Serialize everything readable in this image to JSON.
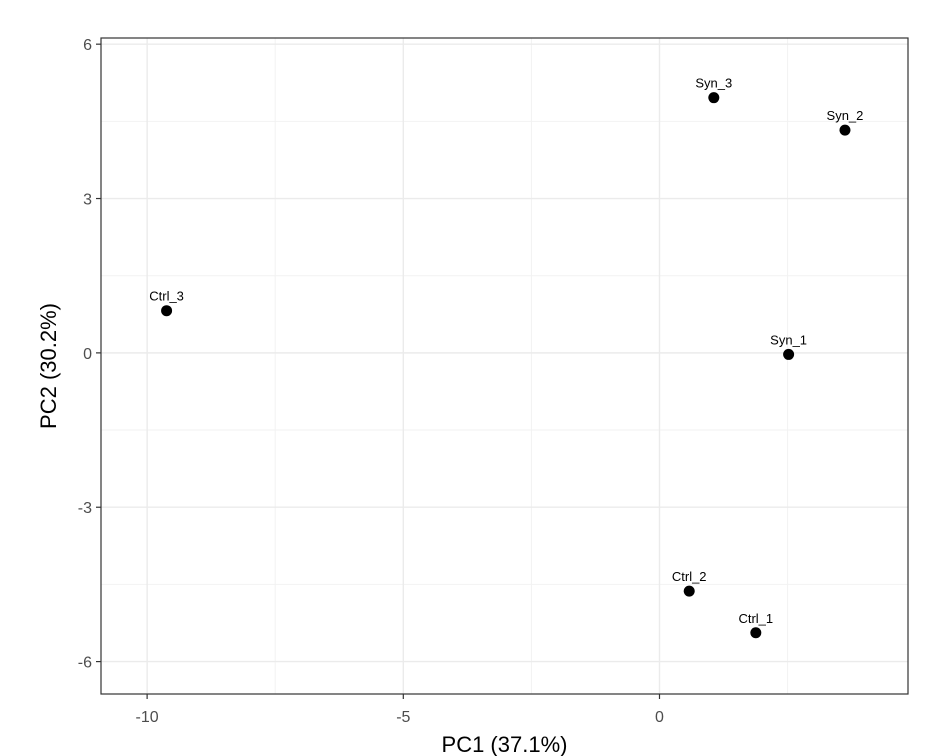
{
  "chart_data": {
    "type": "scatter",
    "title": "",
    "xlabel": "PC1 (37.1%)",
    "ylabel": "PC2 (30.2%)",
    "xlim": [
      -10.9,
      4.85
    ],
    "ylim": [
      -6.63,
      6.12
    ],
    "x_ticks": [
      -10,
      -5,
      0
    ],
    "x_tick_labels": [
      "-10",
      "-5",
      "0"
    ],
    "y_ticks": [
      -6,
      -3,
      0,
      3,
      6
    ],
    "y_tick_labels": [
      "-6",
      "-3",
      "0",
      "3",
      "6"
    ],
    "x_minor_grid": [
      -7.5,
      -2.5,
      2.5
    ],
    "y_minor_grid": [
      -4.5,
      -1.5,
      1.5,
      4.5
    ],
    "grid": true,
    "legend": "none",
    "point_color": "#000000",
    "points": [
      {
        "label": "Ctrl_3",
        "x": -9.62,
        "y": 0.82
      },
      {
        "label": "Syn_3",
        "x": 1.06,
        "y": 4.96
      },
      {
        "label": "Syn_2",
        "x": 3.62,
        "y": 4.33
      },
      {
        "label": "Syn_1",
        "x": 2.52,
        "y": -0.03
      },
      {
        "label": "Ctrl_2",
        "x": 0.58,
        "y": -4.63
      },
      {
        "label": "Ctrl_1",
        "x": 1.88,
        "y": -5.44
      }
    ]
  }
}
